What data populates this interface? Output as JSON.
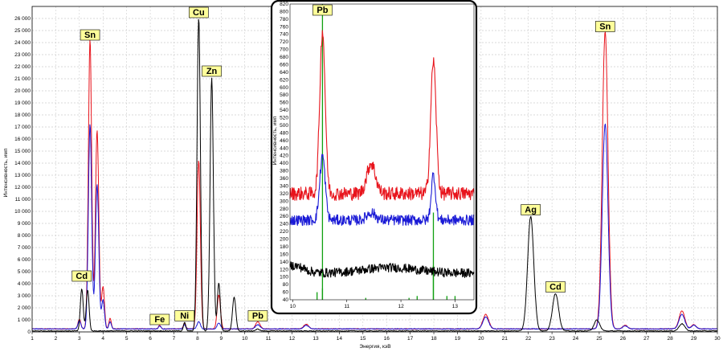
{
  "chart_data": [
    {
      "type": "line",
      "title": "",
      "xlabel": "Энергия, кэВ",
      "ylabel": "Интенсивность, имп",
      "xlim": [
        1,
        30
      ],
      "ylim": [
        0,
        27000
      ],
      "x_ticks": [
        "1",
        "2",
        "3",
        "4",
        "5",
        "6",
        "7",
        "8",
        "9",
        "10",
        "11",
        "12",
        "13",
        "14",
        "15",
        "16",
        "17",
        "18",
        "19",
        "20",
        "21",
        "22",
        "23",
        "24",
        "25",
        "26",
        "27",
        "28",
        "29",
        "30"
      ],
      "y_ticks": [
        "0",
        "1 000",
        "2 000",
        "3 000",
        "4 000",
        "5 000",
        "6 000",
        "7 000",
        "8 000",
        "9 000",
        "10 000",
        "11 000",
        "12 000",
        "13 000",
        "14 000",
        "15 000",
        "16 000",
        "17 000",
        "18 000",
        "19 000",
        "20 000",
        "21 000",
        "22 000",
        "23 000",
        "24 000",
        "25 000",
        "26 000"
      ],
      "grid": true,
      "series_colors": {
        "red": "#e8141c",
        "blue": "#1a1ad6",
        "black": "#000000"
      },
      "series": [
        {
          "color": "#e8141c",
          "baseline": 250,
          "peaks": [
            [
              3.0,
              800,
              0.06
            ],
            [
              3.45,
              24000,
              0.07
            ],
            [
              3.75,
              16500,
              0.07
            ],
            [
              4.0,
              3500,
              0.06
            ],
            [
              4.3,
              900,
              0.05
            ],
            [
              6.4,
              300,
              0.05
            ],
            [
              7.45,
              500,
              0.05
            ],
            [
              8.05,
              14000,
              0.07
            ],
            [
              8.9,
              2800,
              0.07
            ],
            [
              10.55,
              600,
              0.09
            ],
            [
              12.6,
              400,
              0.1
            ],
            [
              20.2,
              1200,
              0.12
            ],
            [
              25.25,
              24700,
              0.12
            ],
            [
              26.1,
              300,
              0.1
            ],
            [
              28.5,
              1500,
              0.12
            ],
            [
              29.0,
              350,
              0.1
            ]
          ]
        },
        {
          "color": "#1a1ad6",
          "baseline": 250,
          "peaks": [
            [
              3.0,
              700,
              0.06
            ],
            [
              3.45,
              17000,
              0.07
            ],
            [
              3.75,
              12000,
              0.07
            ],
            [
              4.0,
              2400,
              0.06
            ],
            [
              4.3,
              600,
              0.05
            ],
            [
              6.4,
              250,
              0.05
            ],
            [
              7.45,
              350,
              0.05
            ],
            [
              8.05,
              600,
              0.07
            ],
            [
              8.9,
              500,
              0.07
            ],
            [
              10.55,
              350,
              0.09
            ],
            [
              12.6,
              300,
              0.1
            ],
            [
              20.2,
              1000,
              0.12
            ],
            [
              25.25,
              17000,
              0.12
            ],
            [
              26.1,
              250,
              0.1
            ],
            [
              28.5,
              1200,
              0.12
            ],
            [
              29.0,
              300,
              0.1
            ]
          ]
        },
        {
          "color": "#000000",
          "baseline": 80,
          "peaks": [
            [
              3.1,
              3500,
              0.06
            ],
            [
              3.35,
              3400,
              0.06
            ],
            [
              7.45,
              700,
              0.05
            ],
            [
              8.05,
              26000,
              0.07
            ],
            [
              8.6,
              21000,
              0.07
            ],
            [
              8.9,
              4000,
              0.06
            ],
            [
              9.55,
              2800,
              0.07
            ],
            [
              10.55,
              150,
              0.08
            ],
            [
              22.1,
              9500,
              0.13
            ],
            [
              23.15,
              3100,
              0.13
            ],
            [
              24.9,
              900,
              0.12
            ],
            [
              28.5,
              600,
              0.12
            ]
          ]
        }
      ],
      "markers": [
        {
          "label": "Sn",
          "x": 3.45,
          "y": 24000
        },
        {
          "label": "Cd",
          "x": 3.1,
          "y": 4000
        },
        {
          "label": "Cu",
          "x": 8.05,
          "y": 26000
        },
        {
          "label": "Zn",
          "x": 8.6,
          "y": 21000
        },
        {
          "label": "Fe",
          "x": 6.4,
          "y": 400
        },
        {
          "label": "Ni",
          "x": 7.45,
          "y": 700
        },
        {
          "label": "Pb",
          "x": 10.55,
          "y": 700
        },
        {
          "label": "Ag",
          "x": 22.1,
          "y": 9500
        },
        {
          "label": "Cd",
          "x": 23.15,
          "y": 3100
        },
        {
          "label": "Sn",
          "x": 25.25,
          "y": 24700
        }
      ]
    },
    {
      "type": "line",
      "title": "",
      "xlabel": "",
      "ylabel": "Интенсивность, имп",
      "xlim": [
        9.95,
        13.35
      ],
      "ylim": [
        40,
        820
      ],
      "x_ticks": [
        "10",
        "11",
        "12",
        "13"
      ],
      "y_ticks": [
        "40",
        "60",
        "80",
        "100",
        "120",
        "140",
        "160",
        "180",
        "200",
        "220",
        "240",
        "260",
        "280",
        "300",
        "320",
        "340",
        "360",
        "380",
        "400",
        "420",
        "440",
        "460",
        "480",
        "500",
        "520",
        "540",
        "560",
        "580",
        "600",
        "620",
        "640",
        "660",
        "680",
        "700",
        "720",
        "740",
        "760",
        "780",
        "800",
        "820"
      ],
      "series": [
        {
          "color": "#e8141c",
          "baseline": 320,
          "noise": 18,
          "peaks": [
            [
              10.55,
              430,
              0.05
            ],
            [
              11.45,
              80,
              0.08
            ],
            [
              12.6,
              350,
              0.05
            ]
          ]
        },
        {
          "color": "#1a1ad6",
          "baseline": 250,
          "noise": 14,
          "peaks": [
            [
              10.55,
              170,
              0.05
            ],
            [
              11.45,
              20,
              0.08
            ],
            [
              12.6,
              120,
              0.04
            ]
          ]
        },
        {
          "color": "#000000",
          "baseline": 110,
          "noise": 12,
          "peaks": [
            [
              10.0,
              20,
              0.2
            ],
            [
              11.8,
              15,
              0.5
            ]
          ]
        }
      ],
      "green_lines": [
        {
          "x": 10.55,
          "top": 820
        },
        {
          "x": 10.45,
          "top": 60
        },
        {
          "x": 10.55,
          "top": 70
        },
        {
          "x": 11.35,
          "top": 45
        },
        {
          "x": 12.15,
          "top": 45
        },
        {
          "x": 12.3,
          "top": 50
        },
        {
          "x": 12.6,
          "top": 270
        },
        {
          "x": 12.6,
          "top": 130
        },
        {
          "x": 12.85,
          "top": 50
        },
        {
          "x": 13.0,
          "top": 50
        }
      ],
      "markers": [
        {
          "label": "Pb",
          "x": 10.55,
          "y": 790
        }
      ]
    }
  ]
}
